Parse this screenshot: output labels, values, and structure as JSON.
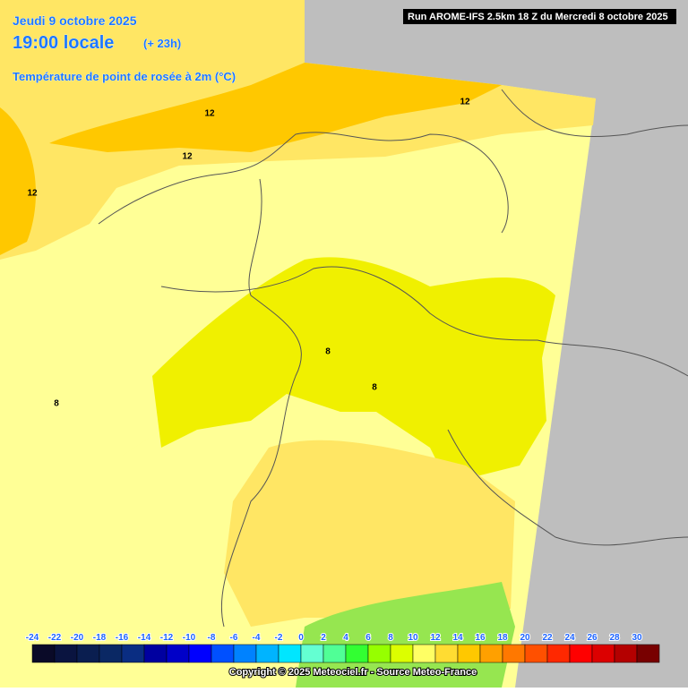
{
  "header": {
    "date": "Jeudi 9 octobre 2025",
    "time": "19:00 locale",
    "lead": "(+ 23h)",
    "variable": "Température de point de rosée à 2m (°C)"
  },
  "run": "Run AROME-IFS 2.5km 18 Z du Mercredi 8 octobre 2025",
  "contour_labels": [
    12,
    12,
    12,
    12,
    8,
    8,
    8
  ],
  "legend": {
    "values": [
      -24,
      -22,
      -20,
      -18,
      -16,
      -14,
      -12,
      -10,
      -8,
      -6,
      -4,
      -2,
      0,
      2,
      4,
      6,
      8,
      10,
      12,
      14,
      16,
      18,
      20,
      22,
      24,
      26,
      28,
      30
    ],
    "colors": [
      "#0a0a28",
      "#0a1440",
      "#0a1e50",
      "#0a2864",
      "#0a2d82",
      "#0000a0",
      "#0000c8",
      "#0000ff",
      "#0050ff",
      "#0082ff",
      "#00b4ff",
      "#00e6ff",
      "#64ffd2",
      "#50ff96",
      "#32ff32",
      "#96ff00",
      "#dcff00",
      "#ffff64",
      "#ffdc32",
      "#ffc800",
      "#ffa000",
      "#ff7800",
      "#ff5000",
      "#ff2800",
      "#ff0000",
      "#dc0000",
      "#b40000",
      "#780000"
    ]
  },
  "copyright": "Copyright © 2025 Meteociel.fr - Source Meteo-France"
}
